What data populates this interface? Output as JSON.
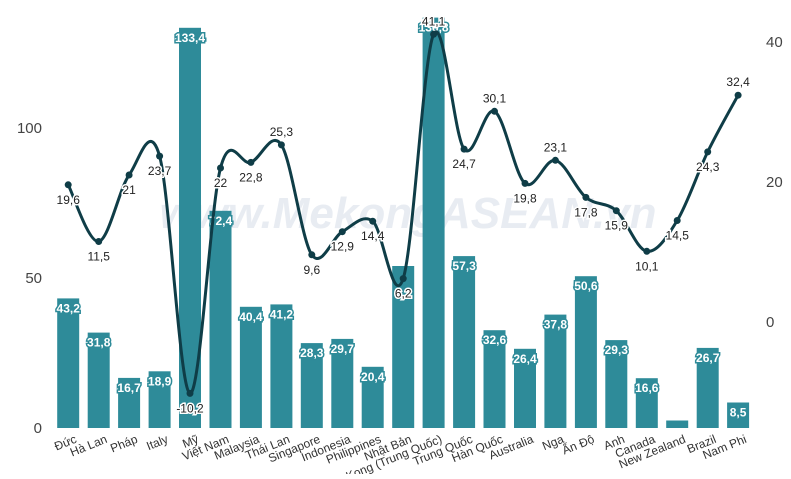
{
  "chart_data": {
    "type": "bar",
    "categories": [
      "Đức",
      "Hà Lan",
      "Pháp",
      "Italy",
      "Mỹ",
      "Việt Nam",
      "Malaysia",
      "Thái Lan",
      "Singapore",
      "Indonesia",
      "Philippines",
      "Nhật Bản",
      "Hong Kong (Trung Quốc)",
      "Trung Quốc",
      "Hàn Quốc",
      "Australia",
      "Nga",
      "Ấn Độ",
      "Anh",
      "Canada",
      "New Zealand",
      "Brazil",
      "Nam Phi"
    ],
    "series": [
      {
        "type": "bar",
        "axis": "left",
        "color": "#2e8b99",
        "values": [
          43.2,
          31.8,
          16.7,
          18.9,
          133.4,
          72.4,
          40.4,
          41.2,
          28.3,
          29.7,
          20.4,
          54.0,
          136.8,
          57.3,
          32.6,
          26.4,
          37.8,
          50.6,
          29.3,
          16.6,
          2.5,
          26.7,
          8.5
        ],
        "labels": [
          "43,2",
          "31,8",
          "16,7",
          "18,9",
          "133,4",
          "72,4",
          "40,4",
          "41,2",
          "28,3",
          "29,7",
          "20,4",
          "",
          "136,8",
          "57,3",
          "32,6",
          "26,4",
          "37,8",
          "50,6",
          "29,3",
          "16,6",
          "",
          "26,7",
          "8,5"
        ]
      },
      {
        "type": "line",
        "axis": "right",
        "color": "#0f3d47",
        "values": [
          19.6,
          11.5,
          21,
          23.7,
          -10.2,
          22,
          22.8,
          25.3,
          9.6,
          12.9,
          14.4,
          6.2,
          41.1,
          24.7,
          30.1,
          19.8,
          23.1,
          17.8,
          15.9,
          10.1,
          14.5,
          24.3,
          32.4
        ],
        "labels": [
          "19,6",
          "11,5",
          "21",
          "23,7",
          "-10,2",
          "22",
          "22,8",
          "25,3",
          "9,6",
          "12,9",
          "14,4",
          "6,2",
          "41,1",
          "24,7",
          "30,1",
          "19,8",
          "23,1",
          "17,8",
          "15,9",
          "10,1",
          "14,5",
          "24,3",
          "32,4"
        ]
      }
    ],
    "y_left": {
      "ylim": [
        0,
        140
      ],
      "ticks": [
        0,
        50,
        100
      ]
    },
    "y_right": {
      "ylim": [
        -15.36,
        44.64
      ],
      "ticks": [
        0,
        20,
        40
      ]
    },
    "grid": false,
    "watermark": "www.MekongASEAN.vn"
  }
}
